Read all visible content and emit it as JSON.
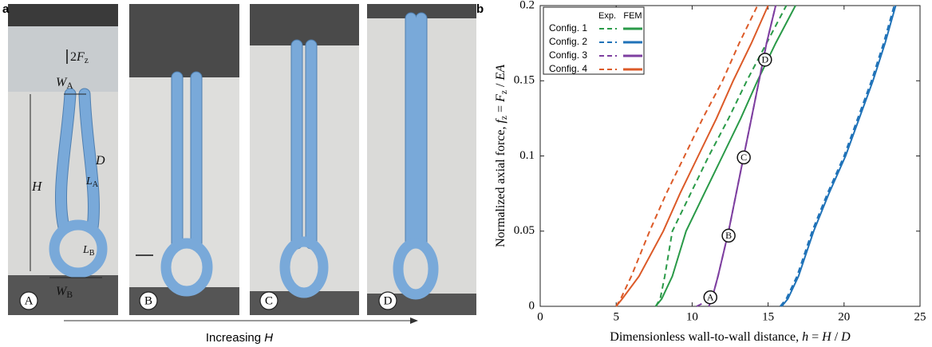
{
  "panel_a": {
    "panel_label": "a",
    "image_labels": [
      "A",
      "B",
      "C",
      "D"
    ],
    "annotations": [
      [
        {
          "text": "2"
        },
        {
          "text": "F",
          "style": "italic"
        },
        {
          "text": "z",
          "style": "sub"
        }
      ],
      [
        {
          "text": "W",
          "style": "italic"
        },
        {
          "text": "A",
          "style": "sub"
        }
      ],
      [
        {
          "text": "D",
          "style": "italic"
        }
      ],
      [
        {
          "text": "H",
          "style": "italic"
        }
      ],
      [
        {
          "text": "L",
          "style": "italic"
        },
        {
          "text": "A",
          "style": "sub"
        }
      ],
      [
        {
          "text": "L",
          "style": "italic"
        },
        {
          "text": "B",
          "style": "sub"
        }
      ],
      [
        {
          "text": "W",
          "style": "italic"
        },
        {
          "text": "B",
          "style": "sub"
        }
      ]
    ],
    "arrow_label": [
      {
        "text": "Increasing "
      },
      {
        "text": "H",
        "style": "italic"
      }
    ]
  },
  "chart_data": {
    "type": "line",
    "panel_label": "b",
    "x_label": [
      {
        "text": "Dimensionless wall-to-wall distance, "
      },
      {
        "text": "h",
        "style": "italic"
      },
      {
        "text": " = "
      },
      {
        "text": "H",
        "style": "italic"
      },
      {
        "text": " / "
      },
      {
        "text": "D",
        "style": "italic"
      }
    ],
    "y_label": [
      {
        "text": "Normalized axial force, "
      },
      {
        "text": "f",
        "style": "italic"
      },
      {
        "text": "z",
        "style": "sub"
      },
      {
        "text": " = "
      },
      {
        "text": "F",
        "style": "italic"
      },
      {
        "text": "z",
        "style": "sub"
      },
      {
        "text": " / "
      },
      {
        "text": "EA",
        "style": "italic"
      }
    ],
    "xlim": [
      0,
      25
    ],
    "ylim": [
      0,
      0.2
    ],
    "xticks": [
      0,
      5,
      10,
      15,
      20,
      25
    ],
    "yticks": [
      0,
      0.05,
      0.1,
      0.15,
      0.2
    ],
    "legend_headers": [
      "Exp.",
      "FEM"
    ],
    "legend": "upper left",
    "series": [
      {
        "name": "Config. 1",
        "color": "#2a9a48",
        "exp": {
          "x": [
            7.6,
            7.9,
            8.2,
            8.7,
            9.9,
            11.1,
            12.4,
            13.6,
            14.9,
            16.2
          ],
          "y": [
            0,
            0.005,
            0.02,
            0.05,
            0.075,
            0.1,
            0.125,
            0.15,
            0.175,
            0.2
          ]
        },
        "fem": {
          "x": [
            7.6,
            8.0,
            8.7,
            9.6,
            10.8,
            12.0,
            13.2,
            14.3,
            15.5,
            16.8
          ],
          "y": [
            0,
            0.005,
            0.02,
            0.05,
            0.075,
            0.1,
            0.125,
            0.15,
            0.175,
            0.2
          ]
        }
      },
      {
        "name": "Config. 2",
        "color": "#1f72b8",
        "exp": {
          "x": [
            15.8,
            16.2,
            16.9,
            17.9,
            18.9,
            20.0,
            20.9,
            21.8,
            22.6,
            23.3
          ],
          "y": [
            0,
            0.005,
            0.02,
            0.05,
            0.075,
            0.1,
            0.125,
            0.15,
            0.175,
            0.2
          ]
        },
        "fem": {
          "x": [
            15.9,
            16.3,
            17.0,
            18.0,
            19.0,
            20.1,
            21.0,
            21.9,
            22.7,
            23.4
          ],
          "y": [
            0,
            0.005,
            0.02,
            0.05,
            0.075,
            0.1,
            0.125,
            0.15,
            0.175,
            0.2
          ]
        }
      },
      {
        "name": "Config. 3",
        "color": "#7e3fa0",
        "exp": {
          "x": [
            10.3,
            11.3,
            11.7,
            12.4,
            12.9,
            13.4,
            13.9,
            14.4,
            14.9,
            15.5
          ],
          "y": [
            0,
            0.005,
            0.02,
            0.05,
            0.075,
            0.1,
            0.125,
            0.15,
            0.175,
            0.2
          ]
        },
        "fem": {
          "x": [
            11.1,
            11.3,
            11.7,
            12.4,
            12.9,
            13.4,
            13.9,
            14.4,
            14.9,
            15.5
          ],
          "y": [
            0,
            0.005,
            0.02,
            0.05,
            0.075,
            0.1,
            0.125,
            0.15,
            0.175,
            0.2
          ]
        }
      },
      {
        "name": "Config. 4",
        "color": "#dc5a28",
        "exp": {
          "x": [
            5.0,
            5.3,
            6.0,
            7.2,
            8.3,
            9.5,
            10.7,
            12.0,
            13.1,
            14.3
          ],
          "y": [
            0,
            0.005,
            0.02,
            0.05,
            0.075,
            0.1,
            0.125,
            0.15,
            0.175,
            0.2
          ]
        },
        "fem": {
          "x": [
            5.0,
            5.4,
            6.5,
            8.1,
            9.2,
            10.4,
            11.6,
            12.7,
            13.9,
            15.0
          ],
          "y": [
            0,
            0.005,
            0.02,
            0.05,
            0.075,
            0.1,
            0.125,
            0.15,
            0.175,
            0.2
          ]
        }
      }
    ],
    "annotations": [
      {
        "text": "A",
        "x": 11.2,
        "y": 0.006
      },
      {
        "text": "B",
        "x": 12.4,
        "y": 0.047
      },
      {
        "text": "C",
        "x": 13.4,
        "y": 0.099
      },
      {
        "text": "D",
        "x": 14.8,
        "y": 0.164
      }
    ]
  }
}
